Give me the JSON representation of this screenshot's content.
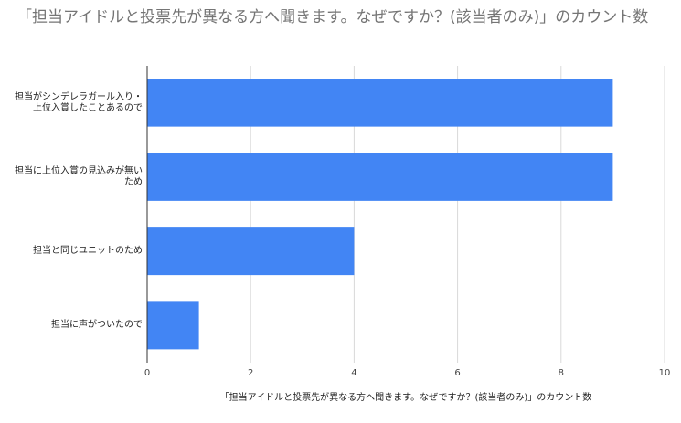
{
  "chart_data": {
    "type": "bar",
    "orientation": "horizontal",
    "title": "「担当アイドルと投票先が異なる方へ聞きます。なぜですか？(該当者のみ)」のカウント数",
    "categories": [
      "担当がシンデレラガール入り・上位入賞したことあるので",
      "担当に上位入賞の見込みが無いため",
      "担当と同じユニットのため",
      "担当に声がついたので"
    ],
    "values": [
      9,
      9,
      4,
      1
    ],
    "color": "#4285f4",
    "xlabel": "「担当アイドルと投票先が異なる方へ聞きます。なぜですか？(該当者のみ)」のカウント数",
    "xlim": [
      0,
      10
    ],
    "xticks": [
      0,
      2,
      4,
      6,
      8,
      10
    ],
    "grid": true
  }
}
